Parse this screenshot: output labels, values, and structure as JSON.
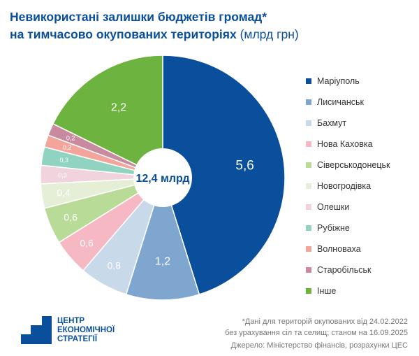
{
  "title_line1": "Невикористані залишки бюджетів громад*",
  "title_line2": "на тимчасово окупованих територіях",
  "title_unit": "(млрд грн)",
  "chart_data": {
    "type": "pie",
    "donut": true,
    "center_label": "12,4 млрд",
    "legend_position": "right",
    "categories": [
      "Маріуполь",
      "Лисичанськ",
      "Бахмут",
      "Нова Каховка",
      "Сіверськодонецьк",
      "Новогродівка",
      "Олешки",
      "Рубіжне",
      "Волноваха",
      "Старобільськ",
      "Інше"
    ],
    "values": [
      5.6,
      1.2,
      0.8,
      0.6,
      0.6,
      0.4,
      0.3,
      0.3,
      0.2,
      0.2,
      2.2
    ],
    "labels": [
      "5,6",
      "1,2",
      "0,8",
      "0,6",
      "0,6",
      "0,4",
      "0,3",
      "0,3",
      "0,2",
      "0,2",
      "2,2"
    ],
    "colors": [
      "#0a4f9c",
      "#7fa6cf",
      "#c8d9ea",
      "#f6b8c2",
      "#b9db98",
      "#e4efd6",
      "#f1d3de",
      "#8fd3c0",
      "#f4a59b",
      "#c98aa0",
      "#6db33f"
    ]
  },
  "logo": {
    "line1": "ЦЕНТР",
    "line2": "ЕКОНОМІЧНОЇ",
    "line3": "СТРАТЕГІЇ"
  },
  "note_line1": "*Дані для територій окупованих від 24.02.2022",
  "note_line2": "без урахування сіл та селищ; станом на 16.09.2025",
  "source": "Джерело: Міністерство фінансів, розрахунки ЦЕС"
}
